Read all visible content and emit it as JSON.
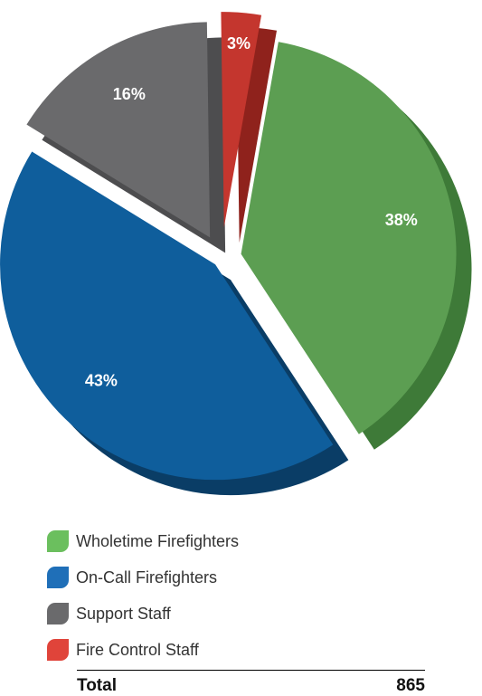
{
  "chart_data": {
    "type": "pie",
    "slices": [
      {
        "label": "Wholetime Firefighters",
        "value": 38,
        "display": "38%",
        "color": "#5c9e52",
        "side": "#3e7a38",
        "legend_color": "#6bbf5e"
      },
      {
        "label": "On-Call Firefighters",
        "value": 43,
        "display": "43%",
        "color": "#0f5e9c",
        "side": "#0a3d66",
        "legend_color": "#1f6fb8"
      },
      {
        "label": "Support Staff",
        "value": 16,
        "display": "16%",
        "color": "#6a6a6c",
        "side": "#4d4d4f",
        "legend_color": "#6a6a6c"
      },
      {
        "label": "Fire Control Staff",
        "value": 3,
        "display": "3%",
        "color": "#c4362e",
        "side": "#8f221c",
        "legend_color": "#e0443a"
      }
    ]
  },
  "total": {
    "label": "Total",
    "value": "865"
  }
}
